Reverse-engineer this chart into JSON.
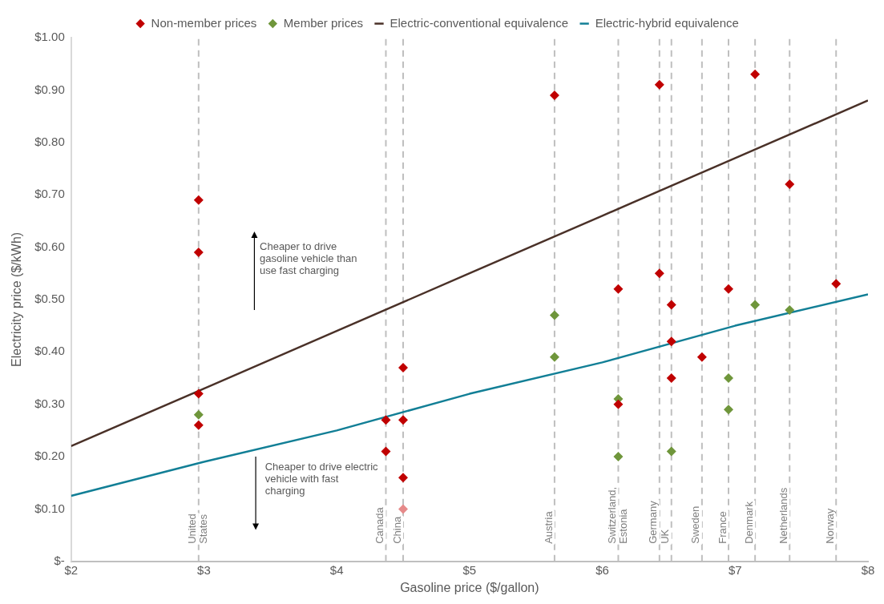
{
  "chart_data": {
    "type": "scatter",
    "xlabel": "Gasoline price ($/gallon)",
    "ylabel": "Electricity price ($/kWh)",
    "xlim": [
      2,
      8
    ],
    "xticks": [
      {
        "value": 2,
        "label": "$2"
      },
      {
        "value": 3,
        "label": "$3"
      },
      {
        "value": 4,
        "label": "$4"
      },
      {
        "value": 5,
        "label": "$5"
      },
      {
        "value": 6,
        "label": "$6"
      },
      {
        "value": 7,
        "label": "$7"
      },
      {
        "value": 8,
        "label": "$8"
      }
    ],
    "ylim": [
      0,
      1
    ],
    "yticks": [
      {
        "value": 0,
        "label": "$-"
      },
      {
        "value": 0.1,
        "label": "$0.10"
      },
      {
        "value": 0.2,
        "label": "$0.20"
      },
      {
        "value": 0.3,
        "label": "$0.30"
      },
      {
        "value": 0.4,
        "label": "$0.40"
      },
      {
        "value": 0.5,
        "label": "$0.50"
      },
      {
        "value": 0.6,
        "label": "$0.60"
      },
      {
        "value": 0.7,
        "label": "$0.70"
      },
      {
        "value": 0.8,
        "label": "$0.80"
      },
      {
        "value": 0.9,
        "label": "$0.90"
      },
      {
        "value": 1,
        "label": "$1.00"
      }
    ],
    "grid": false,
    "legend": "top",
    "series": [
      {
        "name": "Non-member prices",
        "marker": "diamond",
        "color": "#c00000",
        "x": [
          2.96,
          2.96,
          2.96,
          2.96,
          4.37,
          4.37,
          4.5,
          4.5,
          4.5,
          4.5,
          5.64,
          6.12,
          6.12,
          6.43,
          6.43,
          6.52,
          6.52,
          6.52,
          6.75,
          6.95,
          7.15,
          7.41,
          7.76
        ],
        "values": [
          0.69,
          0.59,
          0.32,
          0.26,
          0.27,
          0.21,
          0.37,
          0.27,
          0.16,
          0.1,
          0.89,
          0.52,
          0.3,
          0.91,
          0.55,
          0.49,
          0.42,
          0.35,
          0.39,
          0.52,
          0.93,
          0.72,
          0.53
        ],
        "colors": [
          "#c00000",
          "#c00000",
          "#c00000",
          "#c00000",
          "#c00000",
          "#c00000",
          "#c00000",
          "#c00000",
          "#c00000",
          "#e68a8a",
          "#c00000",
          "#c00000",
          "#c00000",
          "#c00000",
          "#c00000",
          "#c00000",
          "#c00000",
          "#c00000",
          "#c00000",
          "#c00000",
          "#c00000",
          "#c00000",
          "#c00000"
        ]
      },
      {
        "name": "Member prices",
        "marker": "diamond",
        "color": "#6f963b",
        "x": [
          2.96,
          5.64,
          5.64,
          6.12,
          6.12,
          6.52,
          6.95,
          6.95,
          7.15,
          7.41
        ],
        "values": [
          0.28,
          0.47,
          0.39,
          0.31,
          0.2,
          0.21,
          0.35,
          0.29,
          0.49,
          0.48
        ]
      },
      {
        "name": "Electric-conventional equivalence",
        "type": "line",
        "marker": "none",
        "line_style": "solid",
        "color": "#4a3128",
        "x": [
          2,
          3,
          4,
          5,
          6,
          7,
          8
        ],
        "values": [
          0.22,
          0.33,
          0.44,
          0.55,
          0.66,
          0.77,
          0.88
        ]
      },
      {
        "name": "Electric-hybrid equivalence",
        "type": "line",
        "marker": "none",
        "line_style": "solid",
        "color": "#127f96",
        "x": [
          2,
          3,
          4,
          5,
          6,
          7,
          8
        ],
        "values": [
          0.125,
          0.19,
          0.25,
          0.32,
          0.38,
          0.45,
          0.51
        ]
      }
    ],
    "ref_lines": [
      {
        "axis": "x",
        "value": 2.96,
        "label": "United\nStates",
        "color": "#bfbfbf",
        "line_style": "dashed"
      },
      {
        "axis": "x",
        "value": 4.37,
        "label": "Canada",
        "color": "#bfbfbf",
        "line_style": "dashed"
      },
      {
        "axis": "x",
        "value": 4.5,
        "label": "China",
        "color": "#bfbfbf",
        "line_style": "dashed"
      },
      {
        "axis": "x",
        "value": 5.64,
        "label": "Austria",
        "color": "#bfbfbf",
        "line_style": "dashed"
      },
      {
        "axis": "x",
        "value": 6.12,
        "label": "Switzerland,\nEstonia",
        "color": "#bfbfbf",
        "line_style": "dashed"
      },
      {
        "axis": "x",
        "value": 6.43,
        "label": "Germany",
        "color": "#bfbfbf",
        "line_style": "dashed"
      },
      {
        "axis": "x",
        "value": 6.52,
        "label": "UK",
        "color": "#bfbfbf",
        "line_style": "dashed"
      },
      {
        "axis": "x",
        "value": 6.75,
        "label": "Sweden",
        "color": "#bfbfbf",
        "line_style": "dashed"
      },
      {
        "axis": "x",
        "value": 6.95,
        "label": "France",
        "color": "#bfbfbf",
        "line_style": "dashed"
      },
      {
        "axis": "x",
        "value": 7.15,
        "label": "Denmark",
        "color": "#bfbfbf",
        "line_style": "dashed"
      },
      {
        "axis": "x",
        "value": 7.41,
        "label": "Netherlands",
        "color": "#bfbfbf",
        "line_style": "dashed"
      },
      {
        "axis": "x",
        "value": 7.76,
        "label": "Norway",
        "color": "#bfbfbf",
        "line_style": "dashed"
      }
    ],
    "annotations": [
      "Cheaper to drive\ngasoline vehicle than\nuse fast charging",
      "Cheaper to drive electric\nvehicle with fast\ncharging"
    ]
  }
}
